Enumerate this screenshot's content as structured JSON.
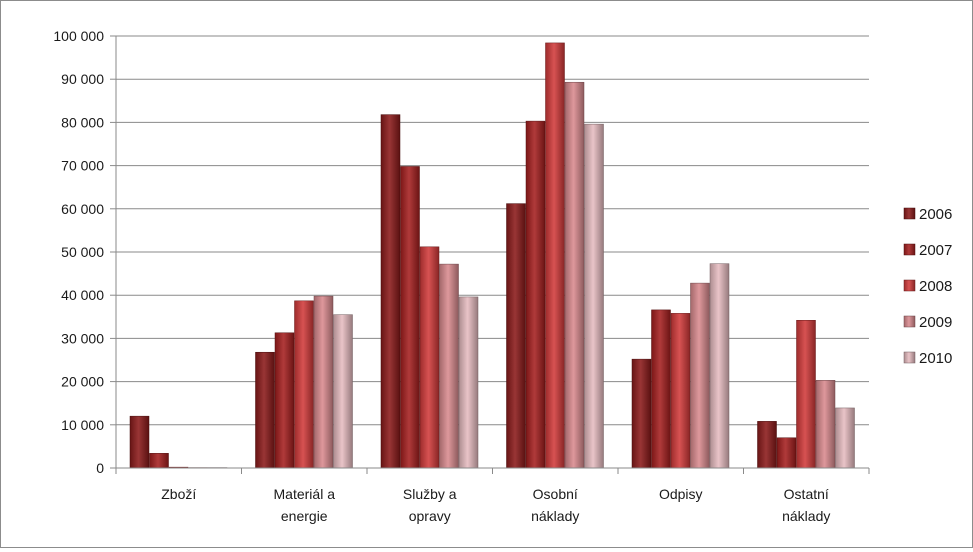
{
  "chart_data": {
    "type": "bar",
    "categories": [
      [
        "Zboží"
      ],
      [
        "Materiál a",
        "energie"
      ],
      [
        "Služby a",
        "opravy"
      ],
      [
        "Osobní",
        "náklady"
      ],
      [
        "Odpisy"
      ],
      [
        "Ostatní",
        "náklady"
      ]
    ],
    "series": [
      {
        "name": "2006",
        "color": "#8b1a1a",
        "values": [
          12000,
          26800,
          81800,
          61200,
          25200,
          10800
        ]
      },
      {
        "name": "2007",
        "color": "#a51f1f",
        "values": [
          3400,
          31300,
          69800,
          80300,
          36600,
          7000
        ]
      },
      {
        "name": "2008",
        "color": "#d23a3a",
        "values": [
          200,
          38700,
          51200,
          98400,
          35800,
          34200
        ]
      },
      {
        "name": "2009",
        "color": "#d98a8f",
        "values": [
          100,
          39800,
          47200,
          89300,
          42800,
          20300
        ]
      },
      {
        "name": "2010",
        "color": "#e6bcc0",
        "values": [
          100,
          35500,
          39600,
          79600,
          47300,
          13900
        ]
      }
    ],
    "yticks": [
      "0",
      "10 000",
      "20 000",
      "30 000",
      "40 000",
      "50 000",
      "60 000",
      "70 000",
      "80 000",
      "90 000",
      "100 000"
    ],
    "ylim": [
      0,
      100000
    ],
    "grid": true,
    "legend_position": "right"
  }
}
